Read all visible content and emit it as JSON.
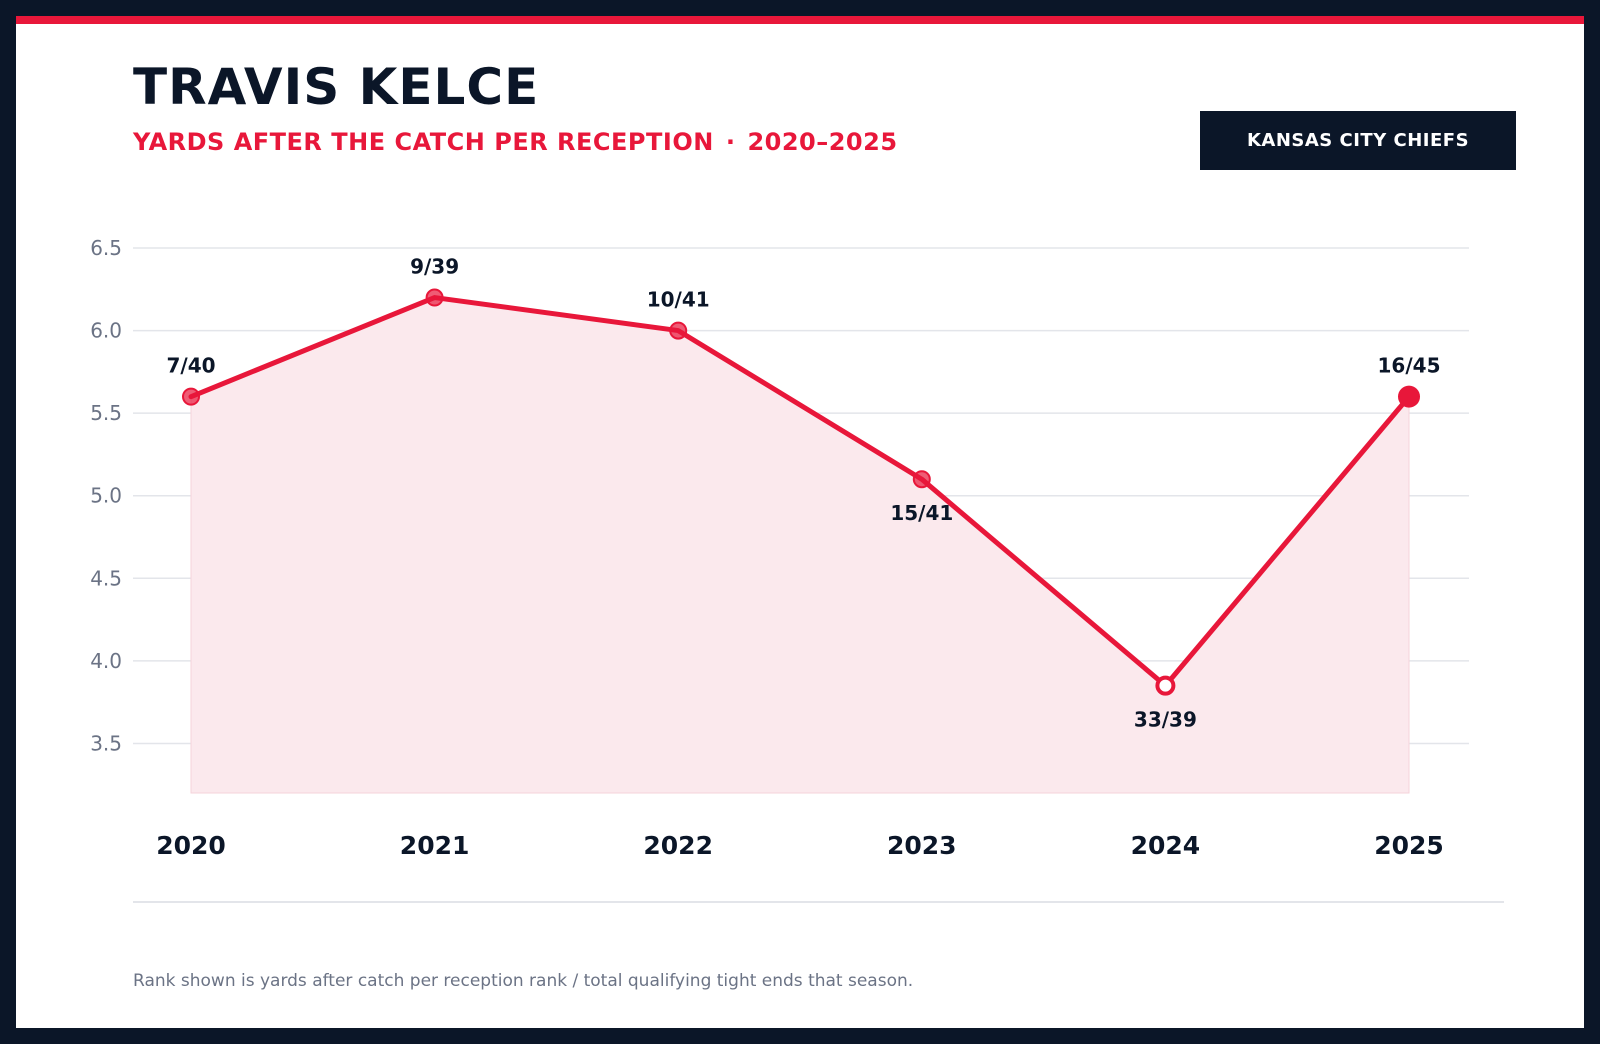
{
  "header": {
    "title": "TRAVIS KELCE",
    "subtitle_metric": "YARDS AFTER THE CATCH PER RECEPTION",
    "subtitle_separator": "·",
    "subtitle_range": "2020–2025",
    "team": "KANSAS CITY CHIEFS"
  },
  "colors": {
    "accent": "#e8173a",
    "navy": "#0b1628",
    "fill": "#fbe9ed",
    "grid": "#e3e5ea",
    "tick_text": "#6b7385"
  },
  "chart_data": {
    "type": "line",
    "title": "",
    "xlabel": "",
    "ylabel": "",
    "x": [
      "2020",
      "2021",
      "2022",
      "2023",
      "2024",
      "2025"
    ],
    "series": [
      {
        "values": [
          5.6,
          6.2,
          6.0,
          5.1,
          3.85,
          5.6
        ],
        "point_labels": [
          "7/40",
          "9/39",
          "10/41",
          "15/41",
          "33/39",
          "16/45"
        ],
        "label_position": [
          "above",
          "above",
          "above",
          "below",
          "below",
          "above"
        ],
        "marker_style": [
          "faded",
          "faded",
          "faded",
          "faded",
          "hollow",
          "solid"
        ]
      }
    ],
    "yticks": [
      "6.5",
      "6.0",
      "5.5",
      "5.0",
      "4.5",
      "4.0",
      "3.5"
    ],
    "ylim": [
      3.2,
      6.5
    ],
    "grid": true,
    "area_fill": true,
    "legend": "none"
  },
  "footnote": "Rank shown is yards after catch per reception rank / total qualifying tight ends that season."
}
